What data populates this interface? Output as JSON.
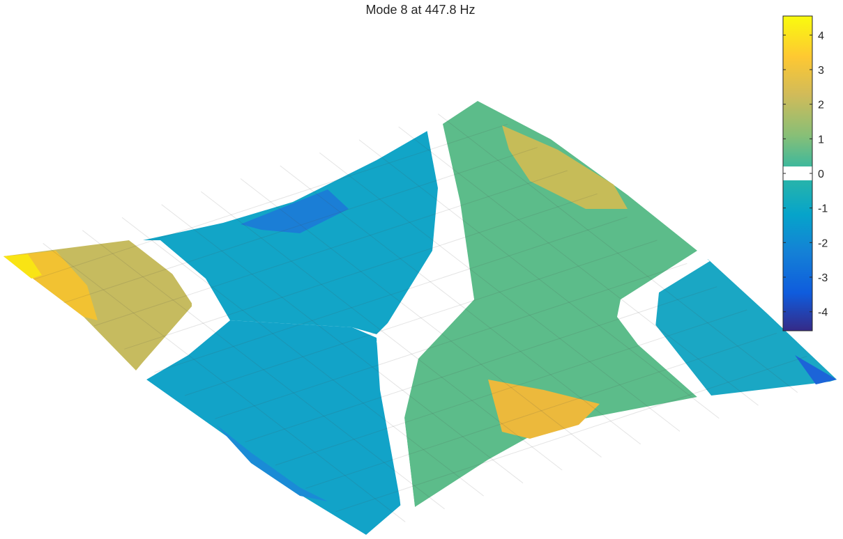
{
  "chart_data": {
    "type": "surface",
    "title": "Mode 8 at 447.8 Hz",
    "mode_number": 8,
    "frequency_hz": 447.8,
    "colormap": "parula",
    "colorbar": {
      "location": "right",
      "range": [
        -4.55,
        4.55
      ],
      "ticks": [
        4,
        3,
        2,
        1,
        0,
        -1,
        -2,
        -3,
        -4
      ],
      "tick_labels": [
        "4",
        "3",
        "2",
        "1",
        "0",
        "-1",
        "-2",
        "-3",
        "-4"
      ],
      "blank_band": [
        -0.2,
        0.2
      ]
    },
    "corner_values": {
      "left": 4.5,
      "back": 2.0,
      "right": -4.5,
      "front": -0.5
    },
    "grid": true,
    "nodal_lines": 4
  }
}
